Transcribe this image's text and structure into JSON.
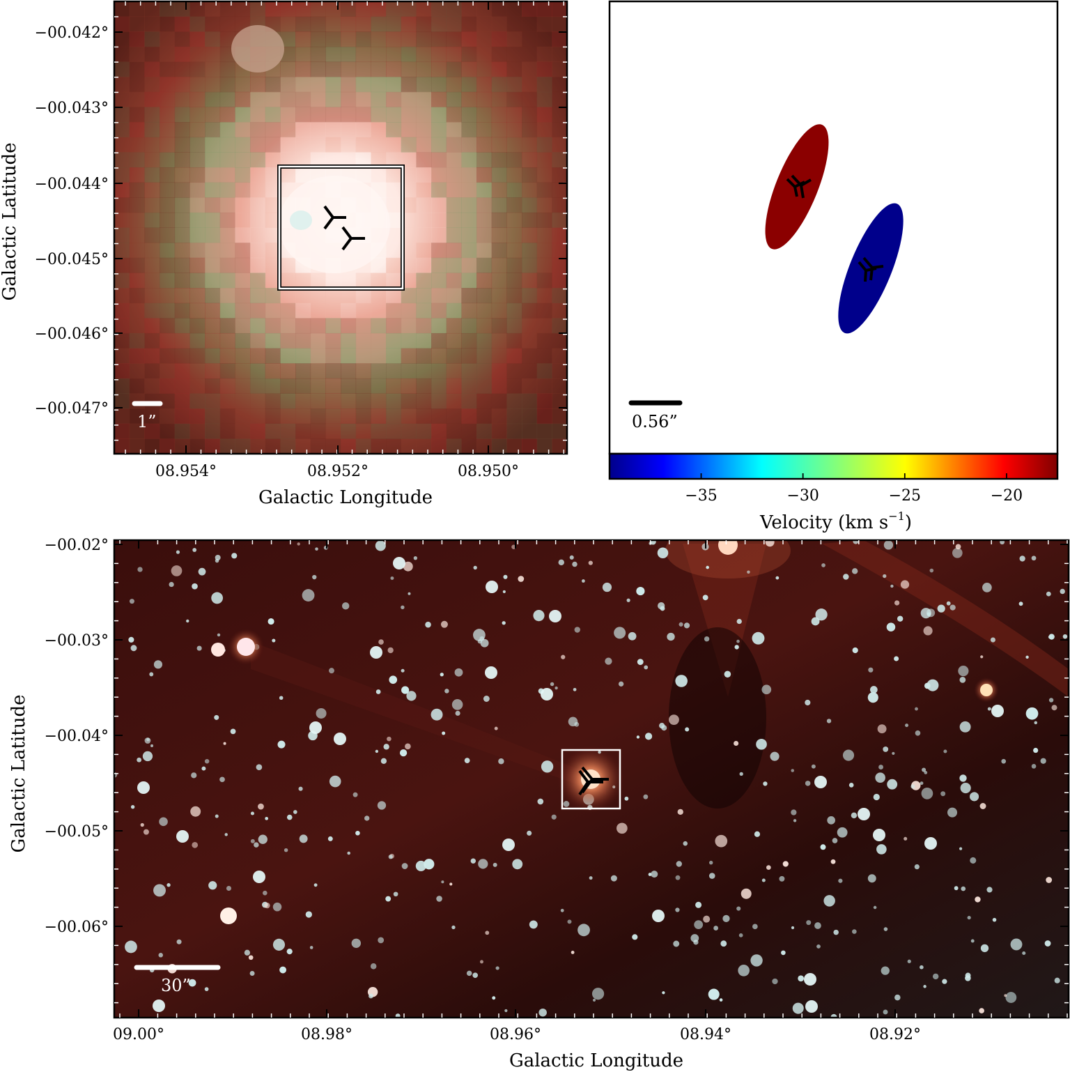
{
  "panel_a": {
    "ylabel": "Galactic Latitude",
    "xlabel": "Galactic Longitude",
    "y_ticks": [
      "−00.042°",
      "−00.043°",
      "−00.044°",
      "−00.045°",
      "−00.046°",
      "−00.047°"
    ],
    "x_ticks": [
      "08.954°",
      "08.952°",
      "08.950°"
    ],
    "scalebar_label": "1”",
    "source_markers": 2
  },
  "panel_b": {
    "scalebar_label": "0.56”",
    "colorbar_label": "Velocity (km s",
    "colorbar_label_sup": "−1",
    "colorbar_label_end": ")",
    "colorbar_ticks": [
      "−35",
      "−30",
      "−25",
      "−20"
    ],
    "colorbar_range": [
      -39.5,
      -17.5
    ],
    "components": [
      {
        "velocity": -18.5,
        "color": "#8b0000"
      },
      {
        "velocity": -39,
        "color": "#00008b"
      }
    ]
  },
  "panel_c": {
    "ylabel": "Galactic Latitude",
    "xlabel": "Galactic Longitude",
    "y_ticks": [
      "−00.02°",
      "−00.03°",
      "−00.04°",
      "−00.05°",
      "−00.06°"
    ],
    "x_ticks": [
      "09.00°",
      "08.98°",
      "08.96°",
      "08.94°",
      "08.92°"
    ],
    "scalebar_label": "30”"
  },
  "colors": {
    "nebula_red": "#7a2018",
    "nebula_green": "#6f8a5a",
    "core_white": "#fff3ee",
    "star_cyan": "#d8f2f2",
    "background_dark": "#2a0a0a"
  }
}
